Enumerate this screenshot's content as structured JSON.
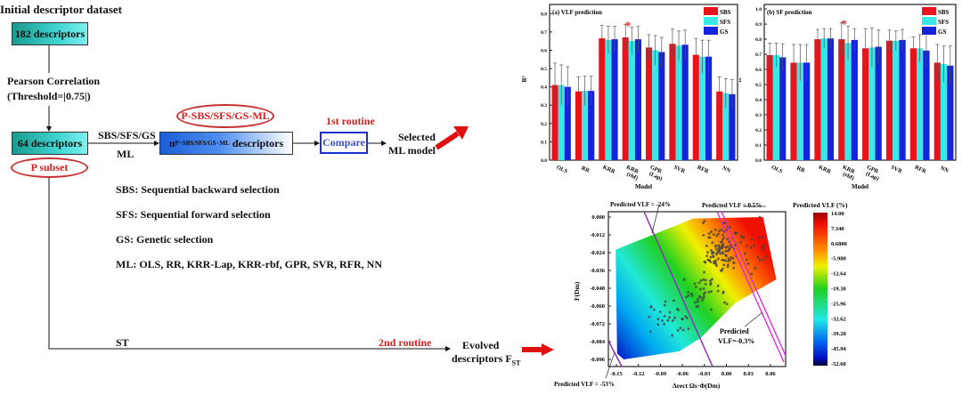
{
  "flow": {
    "title": "Initial descriptor dataset",
    "box_initial": "182 descriptors",
    "pearson_line1": "Pearson Correlation",
    "pearson_line2": "(Threshold=|0.75|)",
    "box_subset": "64 descriptors",
    "p_subset": "P subset",
    "method_label1": "SBS/SFS/GS",
    "method_label2": "ML",
    "n_box_prefix": "n",
    "n_box_sub": "P−SBS/SFS/GS−ML",
    "n_box_suffix": " descriptors",
    "p_ml_ellipse": "P-SBS/SFS/GS-ML",
    "routine1": "1st routine",
    "compare": "Compare",
    "selected_line1": "Selected",
    "selected_line2": "ML model",
    "st_label": "ST",
    "routine2": "2nd routine",
    "evolved_line1": "Evolved",
    "evolved_line2": "descriptors F",
    "evolved_sub": "ST",
    "definitions": [
      "SBS: Sequential backward selection",
      "SFS: Sequential forward selection",
      "GS: Genetic selection",
      "ML: OLS, RR, KRR-Lap, KRR-rbf, GPR, SVR, RFR, NN"
    ],
    "colors": {
      "arrow": "#e01010",
      "ellipse": "#c83030",
      "compare_border": "#1a2fcf"
    }
  },
  "chart_data": [
    {
      "type": "bar",
      "title": "(a) VLF prediction",
      "xlabel": "Model",
      "ylabel": "R²",
      "ylim": [
        0,
        0.85
      ],
      "yticks": [
        "0.0",
        "0.1",
        "0.2",
        "0.3",
        "0.4",
        "0.5",
        "0.6",
        "0.7",
        "0.8"
      ],
      "categories": [
        "OLS",
        "RR",
        "KRR",
        "KRR (rbf)",
        "GPR (Lap)",
        "SVR",
        "RFR",
        "NN"
      ],
      "legend": "top-right",
      "series": [
        {
          "name": "SBS",
          "color": "#e8141c",
          "values": [
            0.41,
            0.375,
            0.665,
            0.67,
            0.615,
            0.635,
            0.575,
            0.375
          ],
          "errors": [
            0.12,
            0.08,
            0.07,
            0.07,
            0.07,
            0.08,
            0.09,
            0.08
          ]
        },
        {
          "name": "SFS",
          "color": "#3ae8e8",
          "values": [
            0.41,
            0.378,
            0.655,
            0.65,
            0.6,
            0.625,
            0.565,
            0.365
          ],
          "errors": [
            0.11,
            0.08,
            0.075,
            0.075,
            0.08,
            0.08,
            0.09,
            0.08
          ]
        },
        {
          "name": "GS",
          "color": "#1424d8",
          "values": [
            0.4,
            0.378,
            0.66,
            0.66,
            0.59,
            0.63,
            0.565,
            0.36
          ],
          "errors": [
            0.11,
            0.08,
            0.07,
            0.07,
            0.08,
            0.08,
            0.09,
            0.08
          ]
        }
      ],
      "marker": {
        "category": "KRR (rbf)",
        "symbol": "*"
      }
    },
    {
      "type": "bar",
      "title": "(b) SF prediction",
      "xlabel": "Model",
      "ylabel": "R²",
      "ylim": [
        0,
        1.03
      ],
      "yticks": [
        "0.0",
        "0.1",
        "0.2",
        "0.3",
        "0.4",
        "0.5",
        "0.6",
        "0.7",
        "0.8",
        "0.9",
        "1.0"
      ],
      "categories": [
        "OLS",
        "RR",
        "KRR",
        "KRR (rbf)",
        "GPR (Lap)",
        "SVR",
        "RFR",
        "NN"
      ],
      "legend": "top-right",
      "series": [
        {
          "name": "SBS",
          "color": "#e8141c",
          "values": [
            0.695,
            0.645,
            0.8,
            0.8,
            0.74,
            0.79,
            0.74,
            0.645
          ],
          "errors": [
            0.08,
            0.12,
            0.065,
            0.11,
            0.13,
            0.07,
            0.075,
            0.12
          ]
        },
        {
          "name": "SFS",
          "color": "#3ae8e8",
          "values": [
            0.695,
            0.645,
            0.805,
            0.775,
            0.745,
            0.79,
            0.74,
            0.635
          ],
          "errors": [
            0.08,
            0.12,
            0.065,
            0.11,
            0.13,
            0.065,
            0.09,
            0.12
          ]
        },
        {
          "name": "GS",
          "color": "#1424d8",
          "values": [
            0.68,
            0.645,
            0.805,
            0.795,
            0.75,
            0.795,
            0.725,
            0.625
          ],
          "errors": [
            0.09,
            0.12,
            0.065,
            0.075,
            0.11,
            0.07,
            0.11,
            0.13
          ]
        }
      ],
      "marker": {
        "category": "KRR (rbf)",
        "symbol": "*"
      }
    },
    {
      "type": "scatter",
      "xlabel": "Δrect Ωs·Φ(Dm)",
      "ylabel": "F(Dm)",
      "xlim": [
        -0.16,
        0.08
      ],
      "ylim": [
        -0.1,
        0.004
      ],
      "xticks": [
        "-0.15",
        "-0.12",
        "-0.09",
        "-0.06",
        "-0.03",
        "0.00",
        "0.03",
        "0.06"
      ],
      "yticks": [
        "0.000",
        "-0.012",
        "-0.024",
        "-0.036",
        "-0.048",
        "-0.060",
        "-0.072",
        "-0.084",
        "-0.096"
      ],
      "colorbar_title": "Predicted VLF (%)",
      "colorbar_ticks": [
        "14.00",
        "7.340",
        "0.6800",
        "-5.980",
        "-12.64",
        "-19.30",
        "-25.96",
        "-32.62",
        "-39.28",
        "-45.94",
        "-52.60"
      ],
      "colorbar_range": [
        -52.6,
        14.0
      ],
      "annotations": [
        "Predicted VLF = -24%",
        "Predicted VLF = 0.5%",
        "Predicted VLF = -53%",
        "Predicted",
        "VLF=-0.3%"
      ]
    }
  ]
}
